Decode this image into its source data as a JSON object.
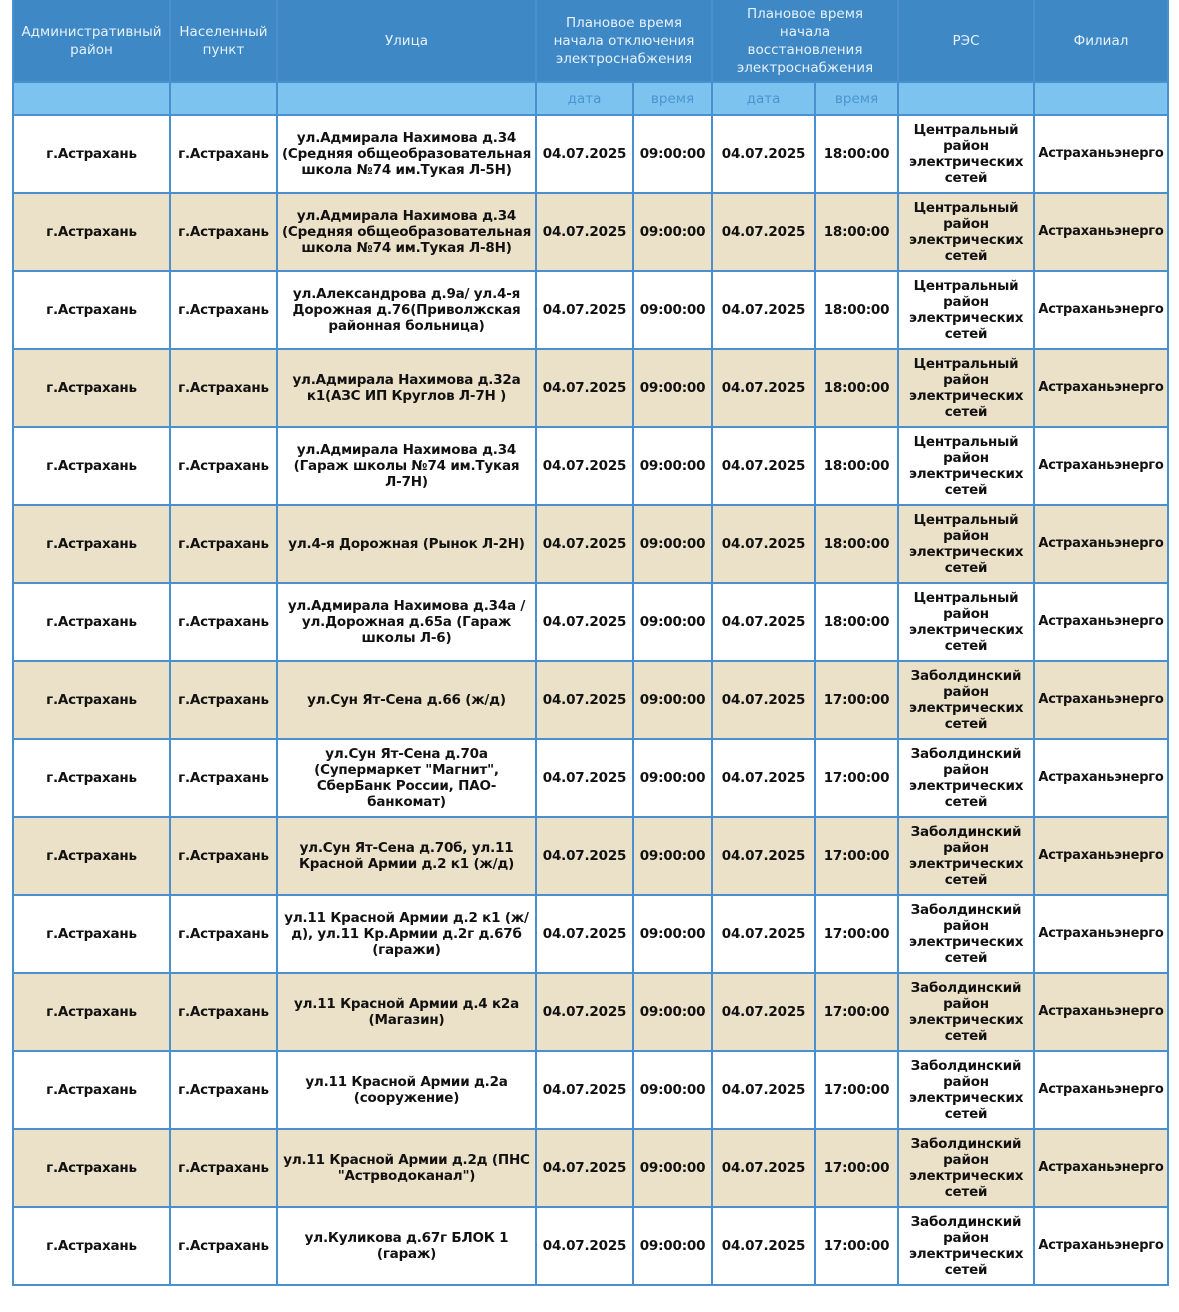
{
  "header": {
    "columns": [
      "Административный район",
      "Населенный пункт",
      "Улица",
      "Плановое время начала отключения электроснабжения",
      "Плановое время начала восстановления электроснабжения",
      "РЭС",
      "Филиал"
    ],
    "sub": {
      "date1": "дата",
      "time1": "время",
      "date2": "дата",
      "time2": "время"
    }
  },
  "colors": {
    "header": "#3d88c5",
    "subheader": "#7cc4ef",
    "row_alt": "#ebe0c8",
    "border": "#4a90cf"
  },
  "rows": [
    {
      "district": "г.Астрахань",
      "locality": "г.Астрахань",
      "street": "ул.Адмирала Нахимова д.34 (Средняя общеобразовательная школа №74 им.Тукая Л-5Н)",
      "start_date": "04.07.2025",
      "start_time": "09:00:00",
      "end_date": "04.07.2025",
      "end_time": "18:00:00",
      "res": "Центральный район электрических сетей",
      "branch": "Астраханьэнерго"
    },
    {
      "district": "г.Астрахань",
      "locality": "г.Астрахань",
      "street": "ул.Адмирала Нахимова д.34 (Средняя общеобразовательная школа №74 им.Тукая Л-8Н)",
      "start_date": "04.07.2025",
      "start_time": "09:00:00",
      "end_date": "04.07.2025",
      "end_time": "18:00:00",
      "res": "Центральный район электрических сетей",
      "branch": "Астраханьэнерго"
    },
    {
      "district": "г.Астрахань",
      "locality": "г.Астрахань",
      "street": "ул.Александрова д.9а/ ул.4-я Дорожная д.76(Приволжская районная больница)",
      "start_date": "04.07.2025",
      "start_time": "09:00:00",
      "end_date": "04.07.2025",
      "end_time": "18:00:00",
      "res": "Центральный район электрических сетей",
      "branch": "Астраханьэнерго"
    },
    {
      "district": "г.Астрахань",
      "locality": "г.Астрахань",
      "street": "ул.Адмирала Нахимова д.32а к1(АЗС ИП Круглов Л-7Н )",
      "start_date": "04.07.2025",
      "start_time": "09:00:00",
      "end_date": "04.07.2025",
      "end_time": "18:00:00",
      "res": "Центральный район электрических сетей",
      "branch": "Астраханьэнерго"
    },
    {
      "district": "г.Астрахань",
      "locality": "г.Астрахань",
      "street": "ул.Адмирала Нахимова д.34 (Гараж школы №74 им.Тукая Л-7Н)",
      "start_date": "04.07.2025",
      "start_time": "09:00:00",
      "end_date": "04.07.2025",
      "end_time": "18:00:00",
      "res": "Центральный район электрических сетей",
      "branch": "Астраханьэнерго"
    },
    {
      "district": "г.Астрахань",
      "locality": "г.Астрахань",
      "street": "ул.4-я Дорожная (Рынок Л-2Н)",
      "start_date": "04.07.2025",
      "start_time": "09:00:00",
      "end_date": "04.07.2025",
      "end_time": "18:00:00",
      "res": "Центральный район электрических сетей",
      "branch": "Астраханьэнерго"
    },
    {
      "district": "г.Астрахань",
      "locality": "г.Астрахань",
      "street": "ул.Адмирала Нахимова д.34а / ул.Дорожная д.65а (Гараж школы Л-6)",
      "start_date": "04.07.2025",
      "start_time": "09:00:00",
      "end_date": "04.07.2025",
      "end_time": "18:00:00",
      "res": "Центральный район электрических сетей",
      "branch": "Астраханьэнерго"
    },
    {
      "district": "г.Астрахань",
      "locality": "г.Астрахань",
      "street": "ул.Сун Ят-Сена д.66 (ж/д)",
      "start_date": "04.07.2025",
      "start_time": "09:00:00",
      "end_date": "04.07.2025",
      "end_time": "17:00:00",
      "res": "Заболдинский район электрических сетей",
      "branch": "Астраханьэнерго"
    },
    {
      "district": "г.Астрахань",
      "locality": "г.Астрахань",
      "street": "ул.Сун Ят-Сена д.70а (Супермаркет \"Магнит\", СберБанк России, ПАО-банкомат)",
      "start_date": "04.07.2025",
      "start_time": "09:00:00",
      "end_date": "04.07.2025",
      "end_time": "17:00:00",
      "res": "Заболдинский район электрических сетей",
      "branch": "Астраханьэнерго"
    },
    {
      "district": "г.Астрахань",
      "locality": "г.Астрахань",
      "street": "ул.Сун Ят-Сена д.70б, ул.11 Красной Армии д.2 к1 (ж/д)",
      "start_date": "04.07.2025",
      "start_time": "09:00:00",
      "end_date": "04.07.2025",
      "end_time": "17:00:00",
      "res": "Заболдинский район электрических сетей",
      "branch": "Астраханьэнерго"
    },
    {
      "district": "г.Астрахань",
      "locality": "г.Астрахань",
      "street": "ул.11 Красной Армии д.2 к1 (ж/д), ул.11 Кр.Армии д.2г д.67б (гаражи)",
      "start_date": "04.07.2025",
      "start_time": "09:00:00",
      "end_date": "04.07.2025",
      "end_time": "17:00:00",
      "res": "Заболдинский район электрических сетей",
      "branch": "Астраханьэнерго"
    },
    {
      "district": "г.Астрахань",
      "locality": "г.Астрахань",
      "street": "ул.11 Красной Армии д.4 к2а (Магазин)",
      "start_date": "04.07.2025",
      "start_time": "09:00:00",
      "end_date": "04.07.2025",
      "end_time": "17:00:00",
      "res": "Заболдинский район электрических сетей",
      "branch": "Астраханьэнерго"
    },
    {
      "district": "г.Астрахань",
      "locality": "г.Астрахань",
      "street": "ул.11 Красной Армии д.2а (сооружение)",
      "start_date": "04.07.2025",
      "start_time": "09:00:00",
      "end_date": "04.07.2025",
      "end_time": "17:00:00",
      "res": "Заболдинский район электрических сетей",
      "branch": "Астраханьэнерго"
    },
    {
      "district": "г.Астрахань",
      "locality": "г.Астрахань",
      "street": "ул.11 Красной Армии д.2д (ПНС \"Астрводоканал\")",
      "start_date": "04.07.2025",
      "start_time": "09:00:00",
      "end_date": "04.07.2025",
      "end_time": "17:00:00",
      "res": "Заболдинский район электрических сетей",
      "branch": "Астраханьэнерго"
    },
    {
      "district": "г.Астрахань",
      "locality": "г.Астрахань",
      "street": "ул.Куликова д.67г БЛОК 1 (гараж)",
      "start_date": "04.07.2025",
      "start_time": "09:00:00",
      "end_date": "04.07.2025",
      "end_time": "17:00:00",
      "res": "Заболдинский район электрических сетей",
      "branch": "Астраханьэнерго"
    }
  ]
}
